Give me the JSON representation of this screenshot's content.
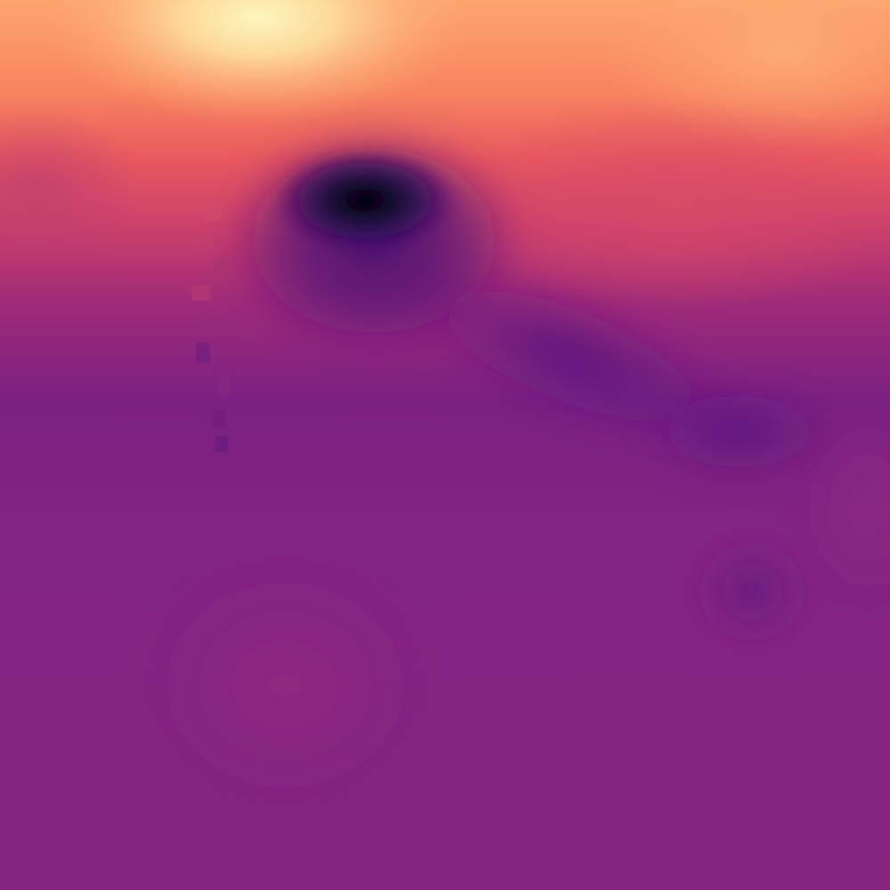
{
  "image": {
    "kind": "heatmap-field",
    "colormap": "magma",
    "palette": {
      "base": "#83247f",
      "deep": "#000004",
      "dark_purple": "#3b0f70",
      "purple": "#6a1c81",
      "magenta": "#8c2981",
      "rose": "#de4968",
      "coral": "#f1605d",
      "orange": "#fe9f6d",
      "light": "#fecf92",
      "pale": "#fcfdbf"
    }
  }
}
